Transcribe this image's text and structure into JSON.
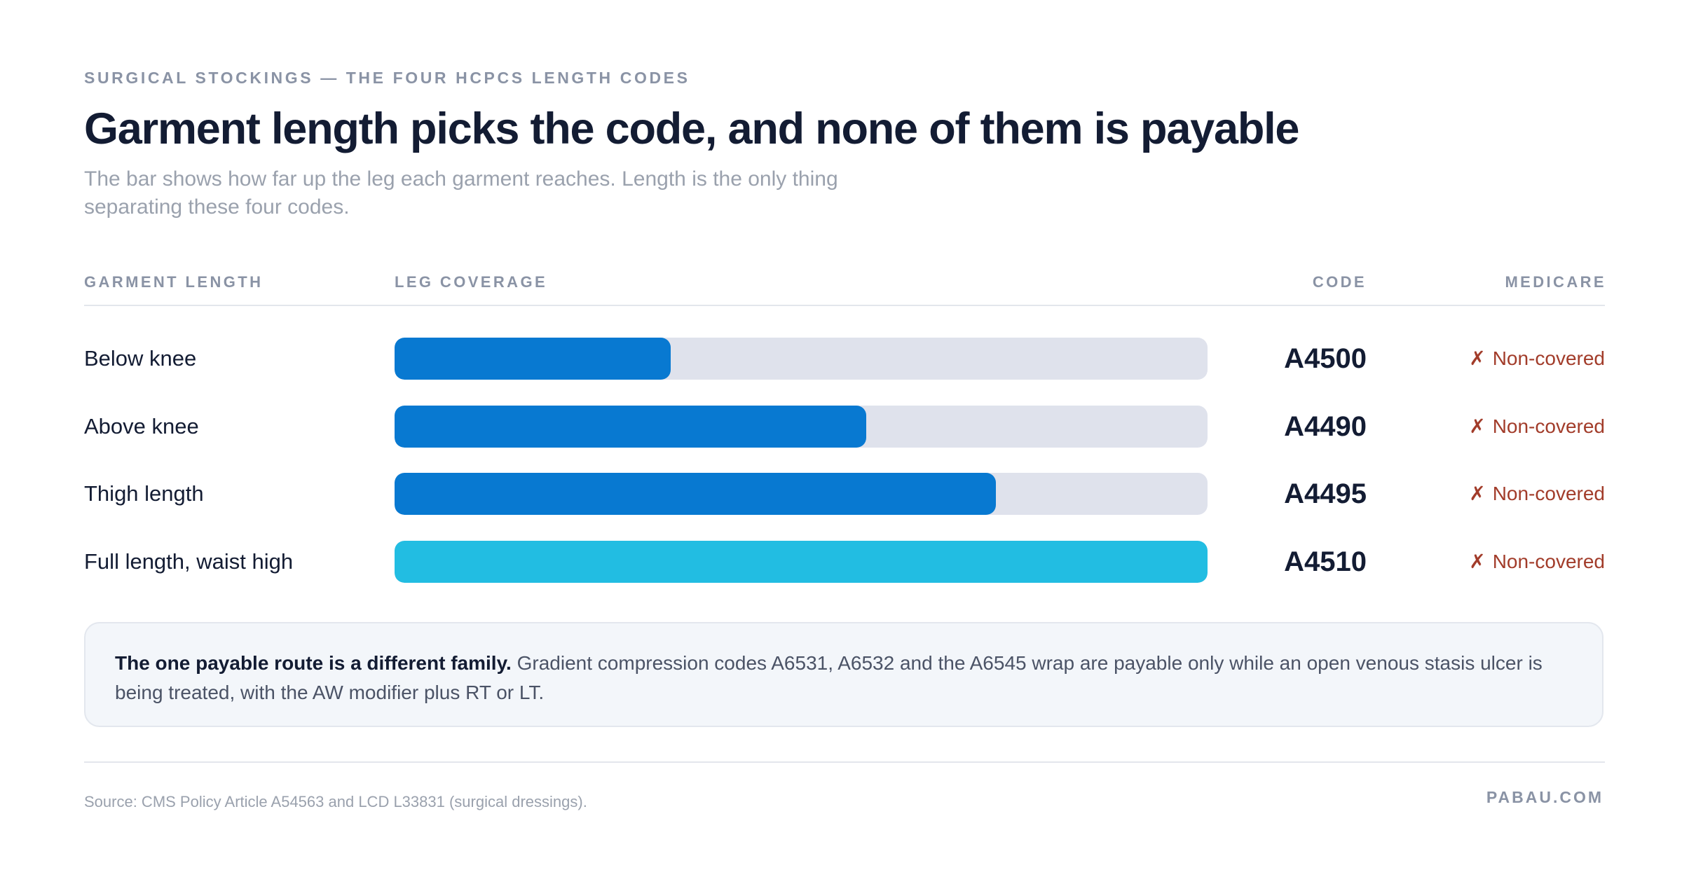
{
  "eyebrow": "SURGICAL STOCKINGS — THE FOUR HCPCS LENGTH CODES",
  "title": "Garment length picks the code, and none of them is payable",
  "subtitle": "The bar shows how far up the leg each garment reaches. Length is the only thing separating these four codes.",
  "columns": {
    "length": "GARMENT LENGTH",
    "coverage": "LEG COVERAGE",
    "code": "CODE",
    "medicare": "MEDICARE"
  },
  "status_icon": "✗",
  "colors": {
    "bar_primary": "#0879d1",
    "bar_full": "#22bde2",
    "track": "#dfe2ec",
    "non_covered": "#a23c2a"
  },
  "chart_data": {
    "type": "bar",
    "orientation": "horizontal",
    "categories": [
      "Below knee",
      "Above knee",
      "Thigh length",
      "Full length, waist high"
    ],
    "values": [
      0.34,
      0.58,
      0.74,
      1.0
    ],
    "value_unit": "fraction of leg covered",
    "xlim": [
      0,
      1
    ],
    "codes": [
      "A4500",
      "A4490",
      "A4495",
      "A4510"
    ],
    "medicare": [
      "Non-covered",
      "Non-covered",
      "Non-covered",
      "Non-covered"
    ],
    "bar_colors": [
      "#0879d1",
      "#0879d1",
      "#0879d1",
      "#22bde2"
    ]
  },
  "note": {
    "lead": "The one payable route is a different family.",
    "body": " Gradient compression codes A6531, A6532 and the A6545 wrap are payable only while an open venous stasis ulcer is being treated, with the AW modifier plus RT or LT."
  },
  "footer": {
    "source": "Source: CMS Policy Article A54563 and LCD L33831 (surgical dressings).",
    "brand": "PABAU.COM"
  }
}
